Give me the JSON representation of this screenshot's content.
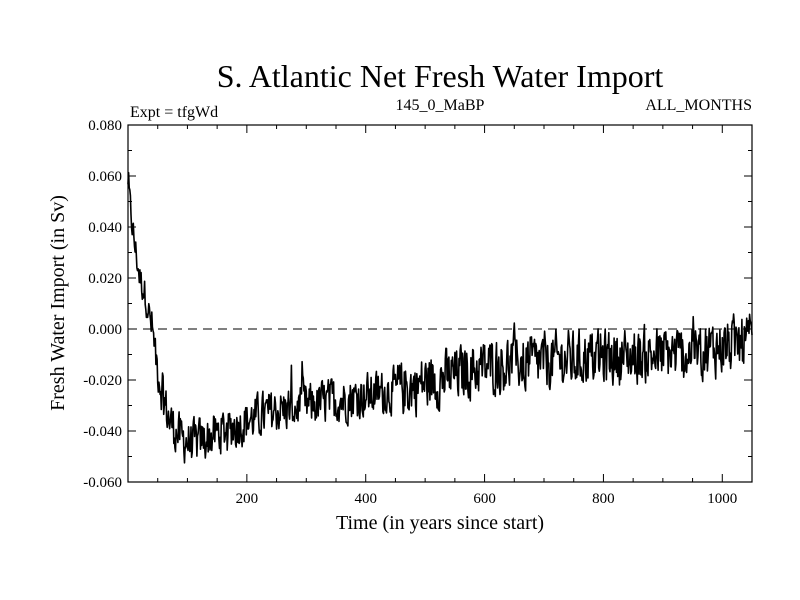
{
  "chart_data": {
    "type": "line",
    "title": "S. Atlantic Net Fresh Water Import",
    "subtitle_left": "Expt = tfgWd",
    "subtitle_center": "145_0_MaBP",
    "subtitle_right": "ALL_MONTHS",
    "xlabel": "Time (in years since start)",
    "ylabel": "Fresh Water Import (in Sv)",
    "xlim": [
      0,
      1050
    ],
    "ylim": [
      -0.06,
      0.08
    ],
    "x_ticks": [
      200,
      400,
      600,
      800,
      1000
    ],
    "x_tick_labels": [
      "200",
      "400",
      "600",
      "800",
      "1000"
    ],
    "y_ticks": [
      -0.06,
      -0.04,
      -0.02,
      0.0,
      0.02,
      0.04,
      0.06,
      0.08
    ],
    "y_tick_labels": [
      "-0.060",
      "-0.040",
      "-0.020",
      "0.000",
      "0.020",
      "0.040",
      "0.060",
      "0.080"
    ],
    "reference_line": {
      "y": 0.0,
      "style": "dashed"
    },
    "series": [
      {
        "name": "Net Fresh Water Import",
        "color": "#000000",
        "x": [
          0,
          10,
          20,
          30,
          40,
          50,
          60,
          70,
          80,
          90,
          100,
          110,
          120,
          130,
          140,
          150,
          160,
          180,
          200,
          225,
          250,
          275,
          300,
          325,
          350,
          375,
          400,
          425,
          450,
          475,
          500,
          525,
          550,
          575,
          600,
          625,
          650,
          675,
          700,
          725,
          750,
          775,
          800,
          825,
          850,
          875,
          900,
          925,
          950,
          975,
          1000,
          1025,
          1050
        ],
        "trend": [
          0.055,
          0.035,
          0.02,
          0.013,
          0.0,
          -0.015,
          -0.028,
          -0.036,
          -0.04,
          -0.043,
          -0.044,
          -0.045,
          -0.044,
          -0.043,
          -0.042,
          -0.041,
          -0.04,
          -0.038,
          -0.036,
          -0.034,
          -0.032,
          -0.031,
          -0.03,
          -0.029,
          -0.028,
          -0.027,
          -0.026,
          -0.025,
          -0.024,
          -0.023,
          -0.021,
          -0.02,
          -0.018,
          -0.016,
          -0.015,
          -0.014,
          -0.013,
          -0.013,
          -0.013,
          -0.012,
          -0.012,
          -0.011,
          -0.011,
          -0.011,
          -0.011,
          -0.01,
          -0.01,
          -0.01,
          -0.009,
          -0.008,
          -0.007,
          -0.006,
          -0.005
        ],
        "noise_amplitude": 0.008,
        "samples": 1050
      }
    ]
  }
}
